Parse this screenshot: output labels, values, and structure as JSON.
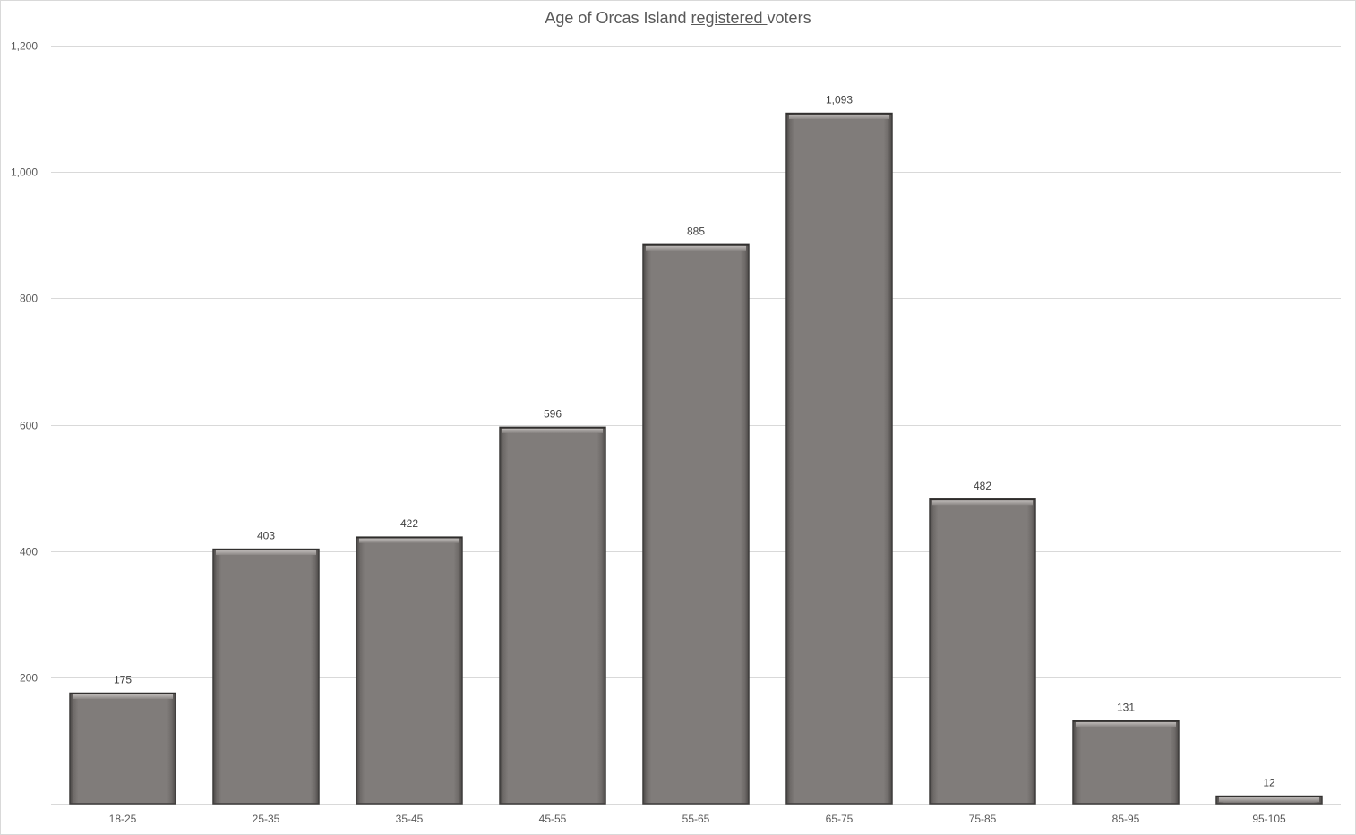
{
  "chart_data": {
    "type": "bar",
    "title_parts": [
      "Age of Orcas Island ",
      "registered ",
      "voters"
    ],
    "xlabel": "",
    "ylabel": "",
    "categories": [
      "18-25",
      "25-35",
      "35-45",
      "45-55",
      "55-65",
      "65-75",
      "75-85",
      "85-95",
      "95-105"
    ],
    "values": [
      175,
      403,
      422,
      596,
      885,
      1093,
      482,
      131,
      12
    ],
    "value_labels": [
      "175",
      "403",
      "422",
      "596",
      "885",
      "1,093",
      "482",
      "131",
      "12"
    ],
    "ylim": [
      0,
      1200
    ],
    "yticks": [
      0,
      200,
      400,
      600,
      800,
      1000,
      1200
    ],
    "ytick_labels": [
      "-",
      "200",
      "400",
      "600",
      "800",
      "1,000",
      "1,200"
    ],
    "grid": true,
    "legend": "none",
    "colors": {
      "bar_fill": "#807c7a",
      "bar_edge": "#3f3d3c",
      "gridline": "#d9d9d9",
      "text": "#595959"
    }
  }
}
